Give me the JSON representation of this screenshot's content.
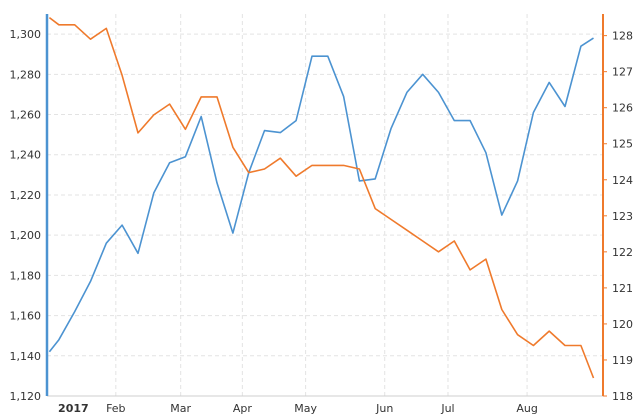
{
  "chart_data": {
    "type": "line",
    "title": "",
    "grid": true,
    "x_ticks": [
      {
        "label": "2017",
        "x": 0,
        "bold": true
      },
      {
        "label": "Feb",
        "x": 4.2
      },
      {
        "label": "Mar",
        "x": 8.3
      },
      {
        "label": "Apr",
        "x": 12.2
      },
      {
        "label": "May",
        "x": 16.2
      },
      {
        "label": "Jun",
        "x": 21.2
      },
      {
        "label": "Jul",
        "x": 25.2
      },
      {
        "label": "Aug",
        "x": 30.2
      }
    ],
    "left_axis": {
      "color": "#4c93d1",
      "ylim": [
        1120,
        1310
      ],
      "ticks": [
        1120,
        1140,
        1160,
        1180,
        1200,
        1220,
        1240,
        1260,
        1280,
        1300
      ],
      "tick_labels": [
        "1,120",
        "1,140",
        "1,160",
        "1,180",
        "1,200",
        "1,220",
        "1,240",
        "1,260",
        "1,280",
        "1,300"
      ]
    },
    "right_axis": {
      "color": "#ef7a2c",
      "ylim": [
        118,
        128.6
      ],
      "ticks": [
        118,
        119,
        120,
        121,
        122,
        123,
        124,
        125,
        126,
        127,
        128
      ],
      "tick_labels": [
        "118",
        "119",
        "120",
        "121",
        "122",
        "123",
        "124",
        "125",
        "126",
        "127",
        "128"
      ]
    },
    "x_range": [
      -0.15,
      35
    ],
    "series": [
      {
        "axis": "left",
        "color": "#4c93d1",
        "x": [
          0,
          0.6,
          1.6,
          2.6,
          3.6,
          4.6,
          5.6,
          6.6,
          7.6,
          8.6,
          9.6,
          10.6,
          11.6,
          12.6,
          13.6,
          14.6,
          15.6,
          16.6,
          17.6,
          18.6,
          19.6,
          20.6,
          21.6,
          22.6,
          23.6,
          24.6,
          25.6,
          26.6,
          27.6,
          28.6,
          29.6,
          30.6,
          31.6,
          32.6,
          33.6,
          34.4
        ],
        "values": [
          1142,
          1148,
          1162,
          1177,
          1196,
          1205,
          1191,
          1221,
          1236,
          1239,
          1259,
          1226,
          1201,
          1231,
          1252,
          1251,
          1257,
          1289,
          1289,
          1269,
          1227,
          1228,
          1253,
          1271,
          1280,
          1271,
          1257,
          1257,
          1241,
          1210,
          1227,
          1261,
          1276,
          1264,
          1294,
          1298
        ]
      },
      {
        "axis": "right",
        "color": "#ef7a2c",
        "x": [
          0,
          0.6,
          1.6,
          2.6,
          3.6,
          4.6,
          5.6,
          6.6,
          7.6,
          8.6,
          9.6,
          10.6,
          11.6,
          12.6,
          13.6,
          14.6,
          15.6,
          16.6,
          17.6,
          18.6,
          19.6,
          20.6,
          21.6,
          22.6,
          23.6,
          24.6,
          25.6,
          26.6,
          27.6,
          28.6,
          29.6,
          30.6,
          31.6,
          32.6,
          33.6,
          34.4
        ],
        "values": [
          128.5,
          128.3,
          128.3,
          127.9,
          128.2,
          126.9,
          125.3,
          125.8,
          126.1,
          125.4,
          126.3,
          126.3,
          124.9,
          124.2,
          124.3,
          124.6,
          124.1,
          124.4,
          124.4,
          124.4,
          124.3,
          123.2,
          122.9,
          122.6,
          122.3,
          122.0,
          122.3,
          121.5,
          121.8,
          120.4,
          119.7,
          119.4,
          119.8,
          119.4,
          119.4,
          118.5
        ]
      }
    ]
  }
}
